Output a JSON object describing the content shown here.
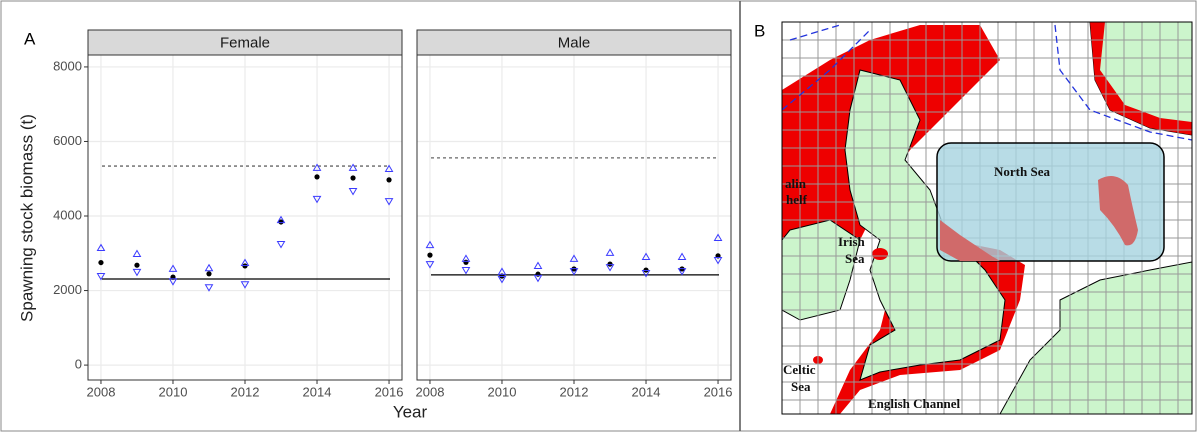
{
  "panel_labels": [
    "A",
    "B"
  ],
  "chart_data": [
    {
      "type": "scatter",
      "title": "Female",
      "ylabel": "Spawning stock biomass (t)",
      "xlabel": "Year",
      "x": [
        2008,
        2009,
        2010,
        2011,
        2012,
        2013,
        2014,
        2015,
        2016
      ],
      "xlim": [
        2007.64,
        2016.36
      ],
      "xticks": [
        2008,
        2010,
        2012,
        2014,
        2016
      ],
      "ylim": [
        -400,
        8320
      ],
      "yticks": [
        0,
        2000,
        4000,
        6000,
        8000
      ],
      "grid": true,
      "series": [
        {
          "color": "#000000",
          "marker": "circle",
          "values": [
            2750,
            2680,
            2360,
            2450,
            2660,
            3840,
            5050,
            5020,
            4970
          ]
        },
        {
          "color": "#3b3bff",
          "marker": "triangle-up",
          "values": [
            3140,
            2980,
            2580,
            2600,
            2740,
            3890,
            5290,
            5290,
            5260
          ]
        },
        {
          "color": "#3b3bff",
          "marker": "triangle-down",
          "values": [
            2390,
            2500,
            2250,
            2090,
            2170,
            3250,
            4460,
            4670,
            4400
          ]
        }
      ],
      "hlines": [
        {
          "value": 5340,
          "style": "dashed",
          "color": "#666666"
        },
        {
          "value": 2310,
          "style": "solid",
          "color": "#000000"
        }
      ]
    },
    {
      "type": "scatter",
      "title": "Male",
      "x": [
        2008,
        2009,
        2010,
        2011,
        2012,
        2013,
        2014,
        2015,
        2016
      ],
      "xlim": [
        2007.64,
        2016.36
      ],
      "xticks": [
        2008,
        2010,
        2012,
        2014,
        2016
      ],
      "ylim": [
        -400,
        8320
      ],
      "yticks": [
        0,
        2000,
        4000,
        6000,
        8000
      ],
      "grid": true,
      "series": [
        {
          "color": "#000000",
          "marker": "circle",
          "values": [
            2950,
            2760,
            2390,
            2440,
            2580,
            2710,
            2550,
            2580,
            2930
          ]
        },
        {
          "color": "#3b3bff",
          "marker": "triangle-up",
          "values": [
            3220,
            2850,
            2500,
            2660,
            2850,
            3010,
            2900,
            2900,
            3410
          ]
        },
        {
          "color": "#3b3bff",
          "marker": "triangle-down",
          "values": [
            2710,
            2550,
            2310,
            2340,
            2520,
            2630,
            2470,
            2520,
            2820
          ]
        }
      ],
      "hlines": [
        {
          "value": 5560,
          "style": "dashed",
          "color": "#666666"
        },
        {
          "value": 2420,
          "style": "solid",
          "color": "#000000"
        }
      ]
    }
  ],
  "map": {
    "labels": [
      "North Sea",
      "Irish",
      "Sea",
      "Celtic",
      "Sea",
      "English Channel",
      "alin",
      "helf"
    ]
  }
}
